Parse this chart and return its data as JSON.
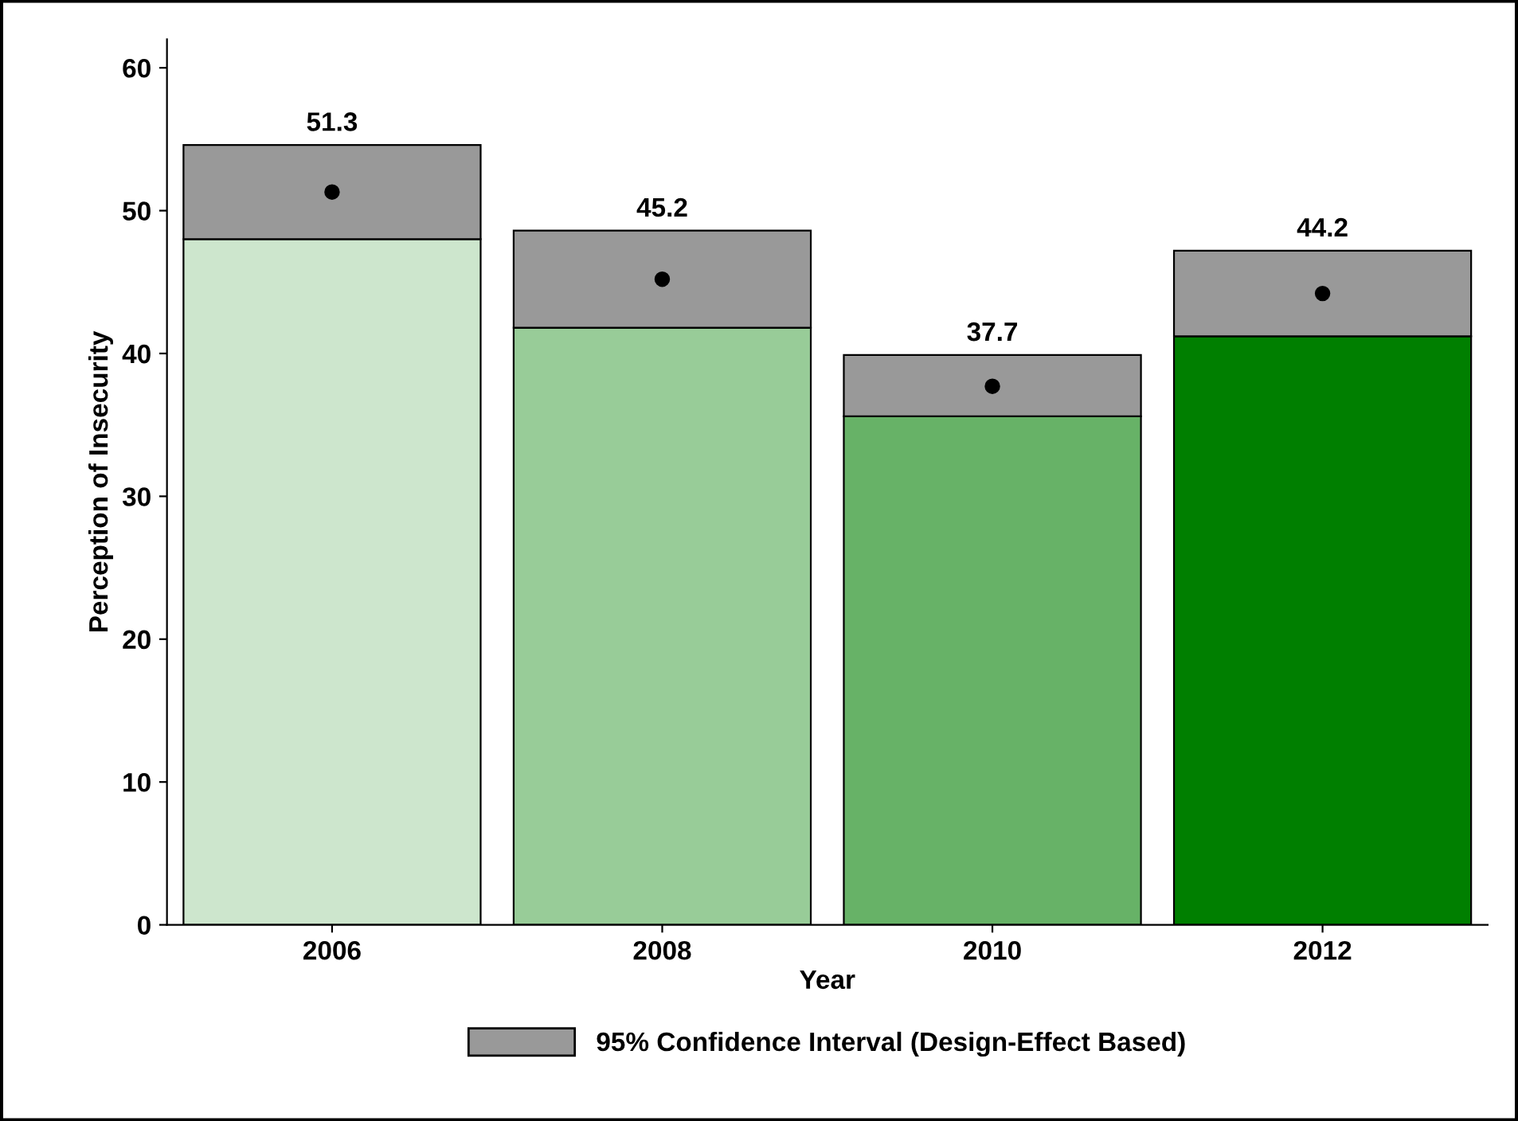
{
  "chart_data": {
    "type": "bar",
    "stacked": true,
    "xlabel": "Year",
    "ylabel": "Perception of Insecurity",
    "categories": [
      "2006",
      "2008",
      "2010",
      "2012"
    ],
    "series": [
      {
        "colors": [
          "#cde6cd",
          "#98cc98",
          "#67b267",
          "#007f00"
        ],
        "values": [
          48.0,
          41.8,
          35.6,
          41.2
        ]
      },
      {
        "name": "95% Confidence Interval (Design-Effect Based)",
        "color": "#999999",
        "values": [
          6.6,
          6.8,
          4.3,
          6.0
        ]
      },
      {
        "type": "scatter",
        "color": "#000000",
        "marker": "circle",
        "values": [
          51.3,
          45.2,
          37.7,
          44.2
        ],
        "value_labels": [
          "51.3",
          "45.2",
          "37.7",
          "44.2"
        ]
      }
    ],
    "legend": "bottom",
    "ylim": [
      0,
      62
    ],
    "yticks": [
      0,
      10,
      20,
      30,
      40,
      50,
      60
    ],
    "grid": false
  }
}
